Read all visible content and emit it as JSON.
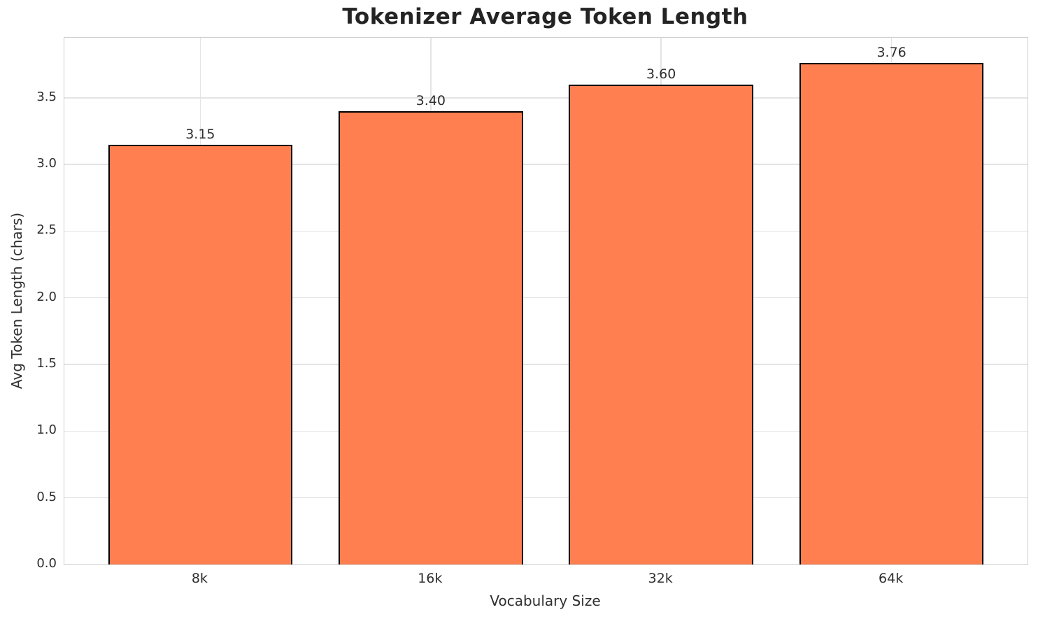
{
  "chart_data": {
    "type": "bar",
    "title": "Tokenizer Average Token Length",
    "xlabel": "Vocabulary Size",
    "ylabel": "Avg Token Length (chars)",
    "categories": [
      "8k",
      "16k",
      "32k",
      "64k"
    ],
    "values": [
      3.15,
      3.4,
      3.6,
      3.76
    ],
    "value_labels": [
      "3.15",
      "3.40",
      "3.60",
      "3.76"
    ],
    "ylim": [
      0,
      3.95
    ],
    "xlim": [
      -0.59,
      3.59
    ],
    "yticks": [
      0,
      0.5,
      1,
      1.5,
      2,
      2.5,
      3,
      3.5
    ],
    "ytick_labels": [
      "0.0",
      "0.5",
      "1.0",
      "1.5",
      "2.0",
      "2.5",
      "3.0",
      "3.5"
    ],
    "bar_width_fraction": 0.8,
    "grid": true,
    "legend_position": "none",
    "colors": {
      "bar_fill": "#FF7F50",
      "bar_edge": "#000000",
      "grid": "#e4e4e4",
      "spine": "#cfcfcf",
      "text": "#2e2e2e",
      "title": "#242424",
      "background": "#ffffff"
    }
  }
}
